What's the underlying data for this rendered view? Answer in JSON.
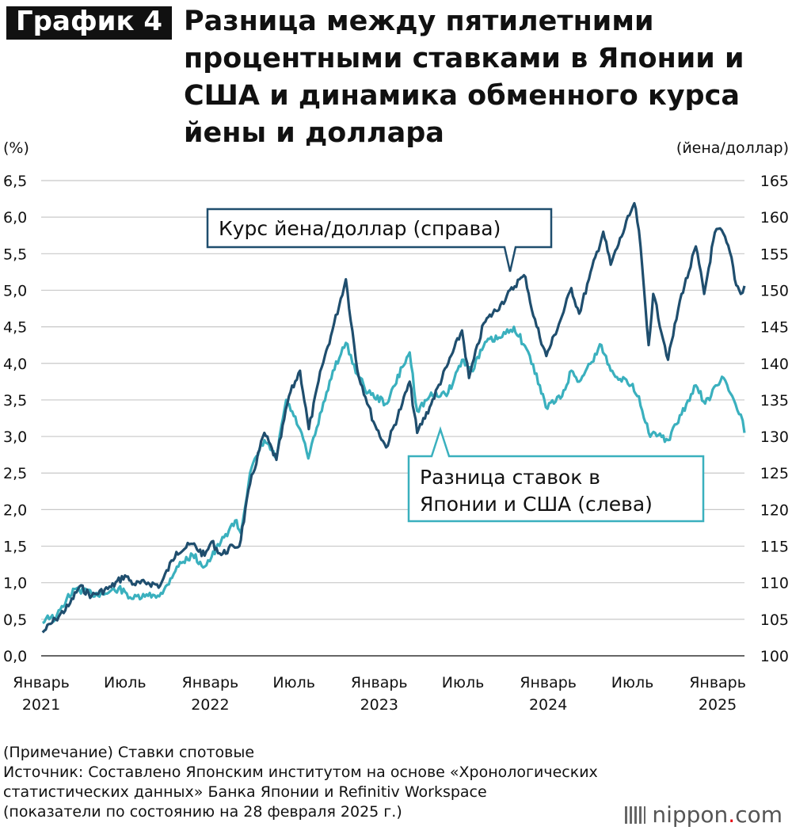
{
  "header": {
    "badge": "График 4",
    "title": "Разница между пятилетними процентными ставками в Японии и США и динамика обменного курса йены и доллара"
  },
  "chart_data": {
    "type": "line",
    "left_axis_unit": "(%)",
    "right_axis_unit": "(йена/доллар)",
    "left_ticks": [
      "0,0",
      "0,5",
      "1,0",
      "1,5",
      "2,0",
      "2,5",
      "3,0",
      "3,5",
      "4,0",
      "4,5",
      "5,0",
      "5,5",
      "6,0",
      "6,5"
    ],
    "right_ticks": [
      "100",
      "105",
      "110",
      "115",
      "120",
      "125",
      "130",
      "135",
      "140",
      "145",
      "150",
      "155",
      "160",
      "165"
    ],
    "ylim_left": [
      0,
      6.5
    ],
    "ylim_right": [
      100,
      165
    ],
    "xlim": [
      "2021-01-01",
      "2025-02-28"
    ],
    "x_ticks": [
      {
        "date": "2021-01-01",
        "line1": "Январь",
        "line2": "2021"
      },
      {
        "date": "2021-07-01",
        "line1": "Июль",
        "line2": ""
      },
      {
        "date": "2022-01-01",
        "line1": "Январь",
        "line2": "2022"
      },
      {
        "date": "2022-07-01",
        "line1": "Июль",
        "line2": ""
      },
      {
        "date": "2023-01-01",
        "line1": "Январь",
        "line2": "2023"
      },
      {
        "date": "2023-07-01",
        "line1": "Июль",
        "line2": ""
      },
      {
        "date": "2024-01-01",
        "line1": "Январь",
        "line2": "2024"
      },
      {
        "date": "2024-07-01",
        "line1": "Июль",
        "line2": ""
      },
      {
        "date": "2025-01-01",
        "line1": "Январь",
        "line2": "2025"
      }
    ],
    "grid": "horizontal",
    "series": [
      {
        "name": "Курс йена/доллар (справа)",
        "axis": "right",
        "color": "#1f4e6e",
        "points": [
          [
            "2021-01-04",
            103.2
          ],
          [
            "2021-02-01",
            105.0
          ],
          [
            "2021-03-01",
            106.8
          ],
          [
            "2021-03-25",
            109.5
          ],
          [
            "2021-04-20",
            108.2
          ],
          [
            "2021-06-01",
            109.4
          ],
          [
            "2021-07-01",
            111.0
          ],
          [
            "2021-07-20",
            109.8
          ],
          [
            "2021-08-20",
            110.0
          ],
          [
            "2021-09-15",
            109.6
          ],
          [
            "2021-10-20",
            114.2
          ],
          [
            "2021-11-24",
            115.3
          ],
          [
            "2021-12-20",
            113.7
          ],
          [
            "2022-01-04",
            115.6
          ],
          [
            "2022-01-25",
            113.8
          ],
          [
            "2022-02-20",
            115.0
          ],
          [
            "2022-03-05",
            115.0
          ],
          [
            "2022-03-28",
            123.5
          ],
          [
            "2022-04-28",
            130.5
          ],
          [
            "2022-05-24",
            126.8
          ],
          [
            "2022-06-20",
            135.5
          ],
          [
            "2022-07-14",
            139.0
          ],
          [
            "2022-08-02",
            131.0
          ],
          [
            "2022-08-30",
            139.5
          ],
          [
            "2022-09-22",
            144.5
          ],
          [
            "2022-10-21",
            151.5
          ],
          [
            "2022-11-15",
            139.0
          ],
          [
            "2022-12-20",
            132.0
          ],
          [
            "2023-01-16",
            128.5
          ],
          [
            "2023-02-20",
            134.5
          ],
          [
            "2023-03-08",
            137.5
          ],
          [
            "2023-03-24",
            130.5
          ],
          [
            "2023-04-20",
            134.0
          ],
          [
            "2023-05-30",
            140.0
          ],
          [
            "2023-06-29",
            144.5
          ],
          [
            "2023-07-14",
            138.0
          ],
          [
            "2023-08-15",
            145.5
          ],
          [
            "2023-09-20",
            148.0
          ],
          [
            "2023-10-31",
            151.5
          ],
          [
            "2023-11-13",
            151.8
          ],
          [
            "2023-11-30",
            146.5
          ],
          [
            "2023-12-28",
            141.0
          ],
          [
            "2024-01-31",
            146.5
          ],
          [
            "2024-02-20",
            150.3
          ],
          [
            "2024-03-08",
            146.8
          ],
          [
            "2024-03-29",
            151.5
          ],
          [
            "2024-04-29",
            158.0
          ],
          [
            "2024-05-15",
            153.5
          ],
          [
            "2024-06-28",
            160.8
          ],
          [
            "2024-07-05",
            161.9
          ],
          [
            "2024-07-15",
            158.2
          ],
          [
            "2024-08-05",
            142.5
          ],
          [
            "2024-08-15",
            149.5
          ],
          [
            "2024-09-16",
            140.5
          ],
          [
            "2024-10-15",
            149.5
          ],
          [
            "2024-10-31",
            152.5
          ],
          [
            "2024-11-15",
            156.0
          ],
          [
            "2024-12-03",
            149.5
          ],
          [
            "2024-12-26",
            157.9
          ],
          [
            "2025-01-10",
            158.2
          ],
          [
            "2025-01-31",
            154.5
          ],
          [
            "2025-02-07",
            151.5
          ],
          [
            "2025-02-20",
            149.5
          ],
          [
            "2025-02-28",
            150.6
          ]
        ]
      },
      {
        "name": "Разница ставок в Японии и США (слева)",
        "axis": "left",
        "color": "#3ab0be",
        "points": [
          [
            "2021-01-04",
            0.45
          ],
          [
            "2021-01-15",
            0.55
          ],
          [
            "2021-02-01",
            0.5
          ],
          [
            "2021-02-25",
            0.78
          ],
          [
            "2021-03-18",
            0.92
          ],
          [
            "2021-04-20",
            0.85
          ],
          [
            "2021-05-20",
            0.85
          ],
          [
            "2021-06-17",
            0.92
          ],
          [
            "2021-07-19",
            0.78
          ],
          [
            "2021-08-20",
            0.82
          ],
          [
            "2021-09-20",
            0.85
          ],
          [
            "2021-10-21",
            1.22
          ],
          [
            "2021-11-24",
            1.38
          ],
          [
            "2021-12-20",
            1.22
          ],
          [
            "2022-01-04",
            1.35
          ],
          [
            "2022-01-31",
            1.62
          ],
          [
            "2022-02-24",
            1.85
          ],
          [
            "2022-03-08",
            1.68
          ],
          [
            "2022-03-28",
            2.5
          ],
          [
            "2022-04-28",
            2.95
          ],
          [
            "2022-05-24",
            2.7
          ],
          [
            "2022-06-14",
            3.5
          ],
          [
            "2022-07-14",
            3.1
          ],
          [
            "2022-08-01",
            2.7
          ],
          [
            "2022-08-30",
            3.35
          ],
          [
            "2022-09-23",
            3.9
          ],
          [
            "2022-10-21",
            4.28
          ],
          [
            "2022-11-15",
            3.85
          ],
          [
            "2022-12-08",
            3.6
          ],
          [
            "2023-01-18",
            3.45
          ],
          [
            "2023-02-20",
            3.95
          ],
          [
            "2023-03-08",
            4.15
          ],
          [
            "2023-03-24",
            3.35
          ],
          [
            "2023-04-20",
            3.55
          ],
          [
            "2023-05-30",
            3.6
          ],
          [
            "2023-06-29",
            4.05
          ],
          [
            "2023-07-19",
            3.9
          ],
          [
            "2023-08-21",
            4.3
          ],
          [
            "2023-09-20",
            4.35
          ],
          [
            "2023-10-19",
            4.5
          ],
          [
            "2023-11-15",
            4.2
          ],
          [
            "2023-12-14",
            3.7
          ],
          [
            "2023-12-27",
            3.4
          ],
          [
            "2024-01-31",
            3.55
          ],
          [
            "2024-02-20",
            3.9
          ],
          [
            "2024-03-08",
            3.75
          ],
          [
            "2024-04-25",
            4.25
          ],
          [
            "2024-05-15",
            3.9
          ],
          [
            "2024-06-28",
            3.7
          ],
          [
            "2024-07-15",
            3.55
          ],
          [
            "2024-08-05",
            3.05
          ],
          [
            "2024-09-16",
            2.95
          ],
          [
            "2024-10-15",
            3.3
          ],
          [
            "2024-11-15",
            3.7
          ],
          [
            "2024-12-05",
            3.45
          ],
          [
            "2024-12-31",
            3.7
          ],
          [
            "2025-01-14",
            3.8
          ],
          [
            "2025-02-05",
            3.5
          ],
          [
            "2025-02-20",
            3.3
          ],
          [
            "2025-02-28",
            3.05
          ]
        ]
      }
    ],
    "callouts": {
      "fx": "Курс йена/доллар (справа)",
      "spread_line1": "Разница ставок в",
      "spread_line2": "Японии и США (слева)"
    }
  },
  "footer": {
    "note": "(Примечание) Ставки спотовые",
    "source_line1": "Источник: Составлено Японским институтом на основе «Хронологических",
    "source_line2": "статистических данных» Банка Японии и Refinitiv Workspace",
    "source_line3": "(показатели по состоянию на 28 февраля 2025 г.)",
    "logo_word": "nippon",
    "logo_dot": ".",
    "logo_tld": "com"
  }
}
